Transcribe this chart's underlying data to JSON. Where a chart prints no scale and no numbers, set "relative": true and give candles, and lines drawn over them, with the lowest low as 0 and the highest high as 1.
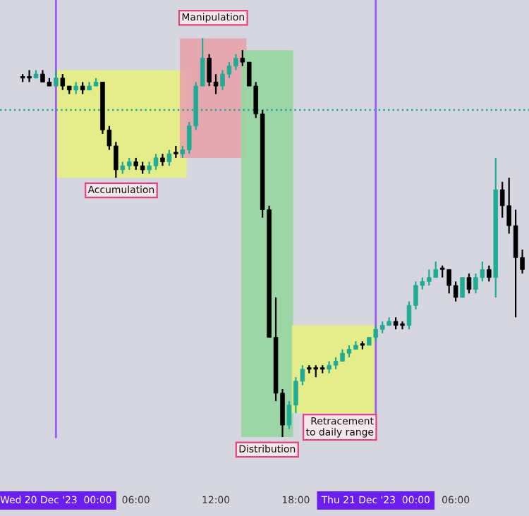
{
  "chart_data": {
    "type": "candlestick",
    "relative": true,
    "grid": false,
    "x": [
      "2023-12-19T21:30",
      "2023-12-19T22:00",
      "2023-12-19T22:30",
      "2023-12-19T23:00",
      "2023-12-19T23:30",
      "2023-12-20T00:00",
      "2023-12-20T00:30",
      "2023-12-20T01:00",
      "2023-12-20T01:30",
      "2023-12-20T02:00",
      "2023-12-20T02:30",
      "2023-12-20T03:00",
      "2023-12-20T03:30",
      "2023-12-20T04:00",
      "2023-12-20T04:30",
      "2023-12-20T05:00",
      "2023-12-20T05:30",
      "2023-12-20T06:00",
      "2023-12-20T06:30",
      "2023-12-20T07:00",
      "2023-12-20T07:30",
      "2023-12-20T08:00",
      "2023-12-20T08:30",
      "2023-12-20T09:00",
      "2023-12-20T09:30",
      "2023-12-20T10:00",
      "2023-12-20T10:30",
      "2023-12-20T11:00",
      "2023-12-20T11:30",
      "2023-12-20T12:00",
      "2023-12-20T12:30",
      "2023-12-20T13:00",
      "2023-12-20T13:30",
      "2023-12-20T14:00",
      "2023-12-20T14:30",
      "2023-12-20T15:00",
      "2023-12-20T15:30",
      "2023-12-20T16:00",
      "2023-12-20T16:30",
      "2023-12-20T17:00",
      "2023-12-20T17:30",
      "2023-12-20T18:00",
      "2023-12-20T18:30",
      "2023-12-20T19:00",
      "2023-12-20T19:30",
      "2023-12-20T20:00",
      "2023-12-20T20:30",
      "2023-12-20T21:00",
      "2023-12-20T21:30",
      "2023-12-20T22:00",
      "2023-12-20T22:30",
      "2023-12-20T23:00",
      "2023-12-20T23:30",
      "2023-12-21T00:00",
      "2023-12-21T00:30",
      "2023-12-21T01:00",
      "2023-12-21T01:30",
      "2023-12-21T02:00",
      "2023-12-21T02:30",
      "2023-12-21T03:00",
      "2023-12-21T03:30",
      "2023-12-21T04:00",
      "2023-12-21T04:30",
      "2023-12-21T05:00",
      "2023-12-21T05:30",
      "2023-12-21T06:00",
      "2023-12-21T06:30",
      "2023-12-21T07:00",
      "2023-12-21T07:30",
      "2023-12-21T08:00",
      "2023-12-21T08:30",
      "2023-12-21T09:00",
      "2023-12-21T09:30",
      "2023-12-21T10:00",
      "2023-12-21T10:30",
      "2023-12-21T11:00"
    ],
    "ohlc": [
      [
        0.9,
        0.91,
        0.89,
        0.9
      ],
      [
        0.9,
        0.92,
        0.89,
        0.9
      ],
      [
        0.9,
        0.92,
        0.9,
        0.91
      ],
      [
        0.91,
        0.92,
        0.89,
        0.89
      ],
      [
        0.89,
        0.9,
        0.88,
        0.88
      ],
      [
        0.88,
        0.92,
        0.88,
        0.9
      ],
      [
        0.9,
        0.91,
        0.87,
        0.88
      ],
      [
        0.88,
        0.88,
        0.86,
        0.87
      ],
      [
        0.87,
        0.89,
        0.86,
        0.88
      ],
      [
        0.88,
        0.89,
        0.86,
        0.87
      ],
      [
        0.87,
        0.89,
        0.87,
        0.88
      ],
      [
        0.88,
        0.9,
        0.88,
        0.89
      ],
      [
        0.89,
        0.89,
        0.76,
        0.77
      ],
      [
        0.77,
        0.78,
        0.72,
        0.73
      ],
      [
        0.73,
        0.74,
        0.65,
        0.67
      ],
      [
        0.67,
        0.69,
        0.66,
        0.68
      ],
      [
        0.68,
        0.7,
        0.67,
        0.69
      ],
      [
        0.69,
        0.7,
        0.67,
        0.68
      ],
      [
        0.68,
        0.69,
        0.66,
        0.67
      ],
      [
        0.67,
        0.69,
        0.66,
        0.68
      ],
      [
        0.68,
        0.71,
        0.67,
        0.7
      ],
      [
        0.7,
        0.71,
        0.68,
        0.69
      ],
      [
        0.69,
        0.72,
        0.68,
        0.71
      ],
      [
        0.71,
        0.73,
        0.7,
        0.71
      ],
      [
        0.71,
        0.73,
        0.7,
        0.72
      ],
      [
        0.72,
        0.79,
        0.71,
        0.78
      ],
      [
        0.78,
        0.89,
        0.77,
        0.88
      ],
      [
        0.88,
        1.0,
        0.88,
        0.95
      ],
      [
        0.95,
        0.96,
        0.88,
        0.89
      ],
      [
        0.89,
        0.91,
        0.86,
        0.88
      ],
      [
        0.88,
        0.92,
        0.87,
        0.91
      ],
      [
        0.91,
        0.94,
        0.9,
        0.93
      ],
      [
        0.93,
        0.96,
        0.92,
        0.95
      ],
      [
        0.95,
        0.97,
        0.93,
        0.94
      ],
      [
        0.94,
        0.94,
        0.88,
        0.88
      ],
      [
        0.88,
        0.89,
        0.8,
        0.81
      ],
      [
        0.81,
        0.82,
        0.55,
        0.57
      ],
      [
        0.57,
        0.58,
        0.25,
        0.25
      ],
      [
        0.25,
        0.35,
        0.09,
        0.11
      ],
      [
        0.11,
        0.12,
        0.0,
        0.03
      ],
      [
        0.03,
        0.09,
        0.02,
        0.08
      ],
      [
        0.08,
        0.15,
        0.06,
        0.14
      ],
      [
        0.14,
        0.18,
        0.13,
        0.17
      ],
      [
        0.17,
        0.18,
        0.16,
        0.17
      ],
      [
        0.17,
        0.18,
        0.15,
        0.17
      ],
      [
        0.17,
        0.18,
        0.16,
        0.17
      ],
      [
        0.17,
        0.19,
        0.16,
        0.18
      ],
      [
        0.18,
        0.2,
        0.17,
        0.19
      ],
      [
        0.19,
        0.22,
        0.19,
        0.21
      ],
      [
        0.21,
        0.23,
        0.2,
        0.22
      ],
      [
        0.22,
        0.24,
        0.22,
        0.23
      ],
      [
        0.23,
        0.24,
        0.22,
        0.23
      ],
      [
        0.23,
        0.25,
        0.23,
        0.25
      ],
      [
        0.25,
        0.28,
        0.24,
        0.27
      ],
      [
        0.27,
        0.29,
        0.26,
        0.28
      ],
      [
        0.28,
        0.3,
        0.28,
        0.29
      ],
      [
        0.29,
        0.3,
        0.27,
        0.28
      ],
      [
        0.28,
        0.29,
        0.27,
        0.28
      ],
      [
        0.28,
        0.34,
        0.27,
        0.33
      ],
      [
        0.33,
        0.39,
        0.32,
        0.38
      ],
      [
        0.38,
        0.4,
        0.37,
        0.39
      ],
      [
        0.39,
        0.42,
        0.38,
        0.4
      ],
      [
        0.4,
        0.44,
        0.4,
        0.42
      ],
      [
        0.42,
        0.43,
        0.4,
        0.42
      ],
      [
        0.42,
        0.42,
        0.36,
        0.38
      ],
      [
        0.38,
        0.39,
        0.34,
        0.35
      ],
      [
        0.35,
        0.4,
        0.35,
        0.4
      ],
      [
        0.4,
        0.41,
        0.36,
        0.37
      ],
      [
        0.37,
        0.41,
        0.36,
        0.4
      ],
      [
        0.4,
        0.44,
        0.39,
        0.42
      ],
      [
        0.42,
        0.43,
        0.39,
        0.4
      ],
      [
        0.4,
        0.7,
        0.35,
        0.62
      ],
      [
        0.62,
        0.64,
        0.55,
        0.58
      ],
      [
        0.58,
        0.65,
        0.51,
        0.53
      ],
      [
        0.53,
        0.57,
        0.3,
        0.45
      ],
      [
        0.45,
        0.47,
        0.41,
        0.42
      ]
    ],
    "colors": [
      "#000000",
      "#000000",
      "#22ab94",
      "#000000",
      "#000000",
      "#22ab94",
      "#000000",
      "#000000",
      "#22ab94",
      "#000000",
      "#22ab94",
      "#22ab94",
      "#000000",
      "#000000",
      "#000000",
      "#22ab94",
      "#22ab94",
      "#000000",
      "#000000",
      "#22ab94",
      "#22ab94",
      "#000000",
      "#22ab94",
      "#000000",
      "#22ab94",
      "#22ab94",
      "#22ab94",
      "#22ab94",
      "#000000",
      "#000000",
      "#22ab94",
      "#22ab94",
      "#22ab94",
      "#000000",
      "#000000",
      "#000000",
      "#000000",
      "#000000",
      "#000000",
      "#000000",
      "#22ab94",
      "#22ab94",
      "#22ab94",
      "#000000",
      "#000000",
      "#000000",
      "#22ab94",
      "#22ab94",
      "#22ab94",
      "#22ab94",
      "#22ab94",
      "#000000",
      "#22ab94",
      "#22ab94",
      "#22ab94",
      "#22ab94",
      "#000000",
      "#000000",
      "#22ab94",
      "#22ab94",
      "#22ab94",
      "#22ab94",
      "#22ab94",
      "#000000",
      "#000000",
      "#000000",
      "#22ab94",
      "#000000",
      "#22ab94",
      "#22ab94",
      "#000000",
      "#22ab94",
      "#000000",
      "#000000",
      "#000000",
      "#000000"
    ],
    "xlim": [
      "2023-12-19T19:48",
      "2023-12-21T11:30"
    ],
    "xticks": [
      {
        "value": "2023-12-20T00:00",
        "label": "Wed 20 Dec '23  00:00"
      },
      {
        "value": "2023-12-20T06:00",
        "label": "06:00"
      },
      {
        "value": "2023-12-20T12:00",
        "label": "12:00"
      },
      {
        "value": "2023-12-20T18:00",
        "label": "18:00"
      },
      {
        "value": "2023-12-21T00:00",
        "label": "Thu 21 Dec '23  00:00"
      },
      {
        "value": "2023-12-21T06:00",
        "label": "06:00"
      }
    ],
    "ref_lines": [
      {
        "axis": "x",
        "value": "2023-12-20T00:00",
        "color": "#9b59f5",
        "line_style": "solid"
      },
      {
        "axis": "x",
        "value": "2023-12-21T00:00",
        "color": "#9b59f5",
        "line_style": "solid"
      },
      {
        "axis": "y",
        "value": 0.82,
        "color": "#22ab94",
        "line_style": "dotted"
      }
    ],
    "bands": [
      {
        "axis": "x",
        "from": "2023-12-20T00:00",
        "to": "2023-12-20T09:48",
        "color": "#e6ef80"
      },
      {
        "axis": "x",
        "from": "2023-12-20T09:18",
        "to": "2023-12-20T14:18",
        "color": "#e8a3ab"
      },
      {
        "axis": "x",
        "from": "2023-12-20T13:54",
        "to": "2023-12-20T17:48",
        "color": "#97d6a0"
      },
      {
        "axis": "x",
        "from": "2023-12-20T17:42",
        "to": "2023-12-21T00:00",
        "color": "#e6ef80"
      }
    ],
    "annotations": [
      "Accumulation",
      "Manipulation",
      "Distribution",
      "Retracement\nto daily range"
    ]
  }
}
